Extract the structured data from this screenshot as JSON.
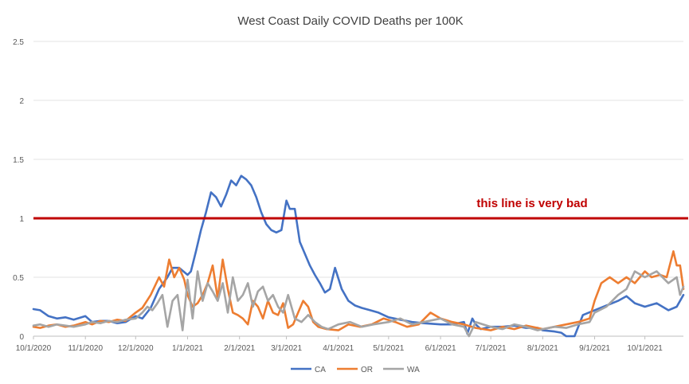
{
  "chart_data": {
    "type": "line",
    "title": "West Coast Daily COVID Deaths per 100K",
    "xlabel": "",
    "ylabel": "",
    "x_tick_labels": [
      "10/1/2020",
      "11/1/2020",
      "12/1/2020",
      "1/1/2021",
      "2/1/2021",
      "3/1/2021",
      "4/1/2021",
      "5/1/2021",
      "6/1/2021",
      "7/1/2021",
      "8/1/2021",
      "9/1/2021",
      "10/1/2021"
    ],
    "x_tick_days": [
      0,
      31,
      61,
      92,
      123,
      151,
      182,
      212,
      243,
      273,
      304,
      335,
      365
    ],
    "y_tick_labels": [
      "0",
      "0.5",
      "1",
      "1.5",
      "2",
      "2.5"
    ],
    "xlim": [
      "10/1/2020",
      "10/24/2021"
    ],
    "ylim": [
      0,
      2.5
    ],
    "grid": "horizontal",
    "legend_position": "bottom",
    "annotation": {
      "text": "this line is very bad",
      "y": 1.0,
      "color": "#c00000"
    },
    "series": [
      {
        "name": "CA",
        "color": "#4472c4",
        "x": [
          "10/1/2020",
          "10/5/2020",
          "10/10/2020",
          "10/15/2020",
          "10/20/2020",
          "10/25/2020",
          "11/1/2020",
          "11/5/2020",
          "11/10/2020",
          "11/15/2020",
          "11/20/2020",
          "11/25/2020",
          "12/1/2020",
          "12/5/2020",
          "12/10/2020",
          "12/15/2020",
          "12/20/2020",
          "12/23/2020",
          "12/27/2020",
          "1/1/2021",
          "1/3/2021",
          "1/6/2021",
          "1/9/2021",
          "1/12/2021",
          "1/15/2021",
          "1/18/2021",
          "1/21/2021",
          "1/24/2021",
          "1/27/2021",
          "1/30/2021",
          "2/2/2021",
          "2/5/2021",
          "2/8/2021",
          "2/11/2021",
          "2/14/2021",
          "2/17/2021",
          "2/20/2021",
          "2/23/2021",
          "2/26/2021",
          "3/1/2021",
          "3/3/2021",
          "3/6/2021",
          "3/9/2021",
          "3/12/2021",
          "3/15/2021",
          "3/18/2021",
          "3/21/2021",
          "3/24/2021",
          "3/27/2021",
          "3/30/2021",
          "4/3/2021",
          "4/7/2021",
          "4/11/2021",
          "4/15/2021",
          "4/20/2021",
          "4/25/2021",
          "5/1/2021",
          "5/8/2021",
          "5/15/2021",
          "5/22/2021",
          "6/1/2021",
          "6/8/2021",
          "6/15/2021",
          "6/17/2021",
          "6/20/2021",
          "6/22/2021",
          "6/25/2021",
          "7/1/2021",
          "7/8/2021",
          "7/15/2021",
          "7/22/2021",
          "7/29/2021",
          "8/1/2021",
          "8/8/2021",
          "8/12/2021",
          "8/15/2021",
          "8/20/2021",
          "8/25/2021",
          "9/1/2021",
          "9/8/2021",
          "9/15/2021",
          "9/20/2021",
          "9/25/2021",
          "10/1/2021",
          "10/8/2021",
          "10/15/2021",
          "10/20/2021",
          "10/24/2021"
        ],
        "y": [
          0.23,
          0.22,
          0.17,
          0.15,
          0.16,
          0.14,
          0.17,
          0.12,
          0.13,
          0.13,
          0.11,
          0.12,
          0.17,
          0.15,
          0.24,
          0.4,
          0.5,
          0.58,
          0.58,
          0.52,
          0.55,
          0.72,
          0.9,
          1.05,
          1.22,
          1.18,
          1.1,
          1.2,
          1.32,
          1.28,
          1.36,
          1.33,
          1.28,
          1.18,
          1.05,
          0.95,
          0.9,
          0.88,
          0.9,
          1.15,
          1.08,
          1.08,
          0.8,
          0.7,
          0.6,
          0.52,
          0.45,
          0.37,
          0.4,
          0.58,
          0.4,
          0.3,
          0.26,
          0.24,
          0.22,
          0.2,
          0.16,
          0.14,
          0.12,
          0.11,
          0.1,
          0.1,
          0.12,
          0.02,
          0.15,
          0.1,
          0.06,
          0.08,
          0.08,
          0.09,
          0.07,
          0.07,
          0.05,
          0.04,
          0.03,
          0.0,
          0.0,
          0.18,
          0.22,
          0.26,
          0.3,
          0.34,
          0.28,
          0.25,
          0.28,
          0.22,
          0.25,
          0.35
        ]
      },
      {
        "name": "OR",
        "color": "#ed7d31",
        "x": [
          "10/1/2020",
          "10/5/2020",
          "10/10/2020",
          "10/15/2020",
          "10/20/2020",
          "10/25/2020",
          "11/1/2020",
          "11/5/2020",
          "11/10/2020",
          "11/15/2020",
          "11/20/2020",
          "11/25/2020",
          "12/1/2020",
          "12/5/2020",
          "12/10/2020",
          "12/15/2020",
          "12/18/2020",
          "12/21/2020",
          "12/24/2020",
          "12/27/2020",
          "12/30/2020",
          "1/1/2021",
          "1/4/2021",
          "1/7/2021",
          "1/10/2021",
          "1/13/2021",
          "1/16/2021",
          "1/19/2021",
          "1/22/2021",
          "1/25/2021",
          "1/28/2021",
          "1/31/2021",
          "2/3/2021",
          "2/6/2021",
          "2/9/2021",
          "2/12/2021",
          "2/15/2021",
          "2/18/2021",
          "2/21/2021",
          "2/24/2021",
          "2/27/2021",
          "3/2/2021",
          "3/5/2021",
          "3/8/2021",
          "3/11/2021",
          "3/14/2021",
          "3/17/2021",
          "3/20/2021",
          "3/25/2021",
          "4/1/2021",
          "4/7/2021",
          "4/14/2021",
          "4/21/2021",
          "4/28/2021",
          "5/5/2021",
          "5/12/2021",
          "5/19/2021",
          "5/26/2021",
          "6/1/2021",
          "6/8/2021",
          "6/15/2021",
          "6/22/2021",
          "7/1/2021",
          "7/8/2021",
          "7/15/2021",
          "7/22/2021",
          "7/29/2021",
          "8/1/2021",
          "8/8/2021",
          "8/15/2021",
          "8/22/2021",
          "8/29/2021",
          "9/1/2021",
          "9/5/2021",
          "9/10/2021",
          "9/15/2021",
          "9/20/2021",
          "9/25/2021",
          "10/1/2021",
          "10/5/2021",
          "10/10/2021",
          "10/14/2021",
          "10/18/2021",
          "10/20/2021",
          "10/22/2021",
          "10/24/2021"
        ],
        "y": [
          0.08,
          0.07,
          0.09,
          0.1,
          0.08,
          0.09,
          0.12,
          0.1,
          0.13,
          0.12,
          0.14,
          0.13,
          0.2,
          0.24,
          0.35,
          0.5,
          0.42,
          0.65,
          0.5,
          0.58,
          0.48,
          0.35,
          0.25,
          0.28,
          0.35,
          0.45,
          0.6,
          0.32,
          0.65,
          0.4,
          0.2,
          0.18,
          0.15,
          0.1,
          0.3,
          0.25,
          0.15,
          0.3,
          0.2,
          0.18,
          0.28,
          0.07,
          0.1,
          0.2,
          0.3,
          0.25,
          0.12,
          0.08,
          0.06,
          0.05,
          0.1,
          0.08,
          0.1,
          0.15,
          0.12,
          0.08,
          0.1,
          0.2,
          0.15,
          0.12,
          0.1,
          0.07,
          0.05,
          0.08,
          0.06,
          0.09,
          0.07,
          0.06,
          0.08,
          0.1,
          0.12,
          0.15,
          0.3,
          0.45,
          0.5,
          0.45,
          0.5,
          0.45,
          0.55,
          0.5,
          0.52,
          0.5,
          0.72,
          0.6,
          0.6,
          0.4
        ]
      },
      {
        "name": "WA",
        "color": "#a5a5a5",
        "x": [
          "10/1/2020",
          "10/5/2020",
          "10/10/2020",
          "10/15/2020",
          "10/20/2020",
          "10/25/2020",
          "11/1/2020",
          "11/5/2020",
          "11/10/2020",
          "11/15/2020",
          "11/20/2020",
          "11/25/2020",
          "12/1/2020",
          "12/5/2020",
          "12/8/2020",
          "12/11/2020",
          "12/14/2020",
          "12/17/2020",
          "12/20/2020",
          "12/23/2020",
          "12/26/2020",
          "12/29/2020",
          "1/1/2021",
          "1/4/2021",
          "1/7/2021",
          "1/10/2021",
          "1/13/2021",
          "1/16/2021",
          "1/19/2021",
          "1/22/2021",
          "1/25/2021",
          "1/28/2021",
          "1/31/2021",
          "2/3/2021",
          "2/6/2021",
          "2/9/2021",
          "2/12/2021",
          "2/15/2021",
          "2/18/2021",
          "2/21/2021",
          "2/24/2021",
          "2/27/2021",
          "3/2/2021",
          "3/6/2021",
          "3/10/2021",
          "3/14/2021",
          "3/18/2021",
          "3/22/2021",
          "3/26/2021",
          "4/1/2021",
          "4/8/2021",
          "4/15/2021",
          "4/22/2021",
          "5/1/2021",
          "5/8/2021",
          "5/15/2021",
          "5/22/2021",
          "6/1/2021",
          "6/8/2021",
          "6/15/2021",
          "6/18/2021",
          "6/22/2021",
          "7/1/2021",
          "7/8/2021",
          "7/15/2021",
          "7/22/2021",
          "7/29/2021",
          "8/1/2021",
          "8/8/2021",
          "8/15/2021",
          "8/22/2021",
          "8/29/2021",
          "9/1/2021",
          "9/8/2021",
          "9/15/2021",
          "9/20/2021",
          "9/25/2021",
          "10/1/2021",
          "10/8/2021",
          "10/15/2021",
          "10/20/2021",
          "10/22/2021",
          "10/24/2021"
        ],
        "y": [
          0.09,
          0.1,
          0.08,
          0.1,
          0.09,
          0.08,
          0.1,
          0.12,
          0.11,
          0.13,
          0.12,
          0.14,
          0.15,
          0.2,
          0.25,
          0.22,
          0.28,
          0.35,
          0.08,
          0.3,
          0.35,
          0.05,
          0.48,
          0.15,
          0.55,
          0.3,
          0.45,
          0.38,
          0.3,
          0.45,
          0.2,
          0.5,
          0.3,
          0.35,
          0.45,
          0.25,
          0.38,
          0.42,
          0.3,
          0.35,
          0.25,
          0.2,
          0.35,
          0.15,
          0.12,
          0.18,
          0.12,
          0.08,
          0.06,
          0.1,
          0.12,
          0.08,
          0.1,
          0.12,
          0.15,
          0.1,
          0.12,
          0.15,
          0.1,
          0.08,
          0.0,
          0.12,
          0.08,
          0.06,
          0.1,
          0.08,
          0.05,
          0.06,
          0.08,
          0.07,
          0.1,
          0.12,
          0.2,
          0.25,
          0.35,
          0.4,
          0.55,
          0.5,
          0.55,
          0.45,
          0.5,
          0.35,
          0.42
        ]
      }
    ]
  }
}
